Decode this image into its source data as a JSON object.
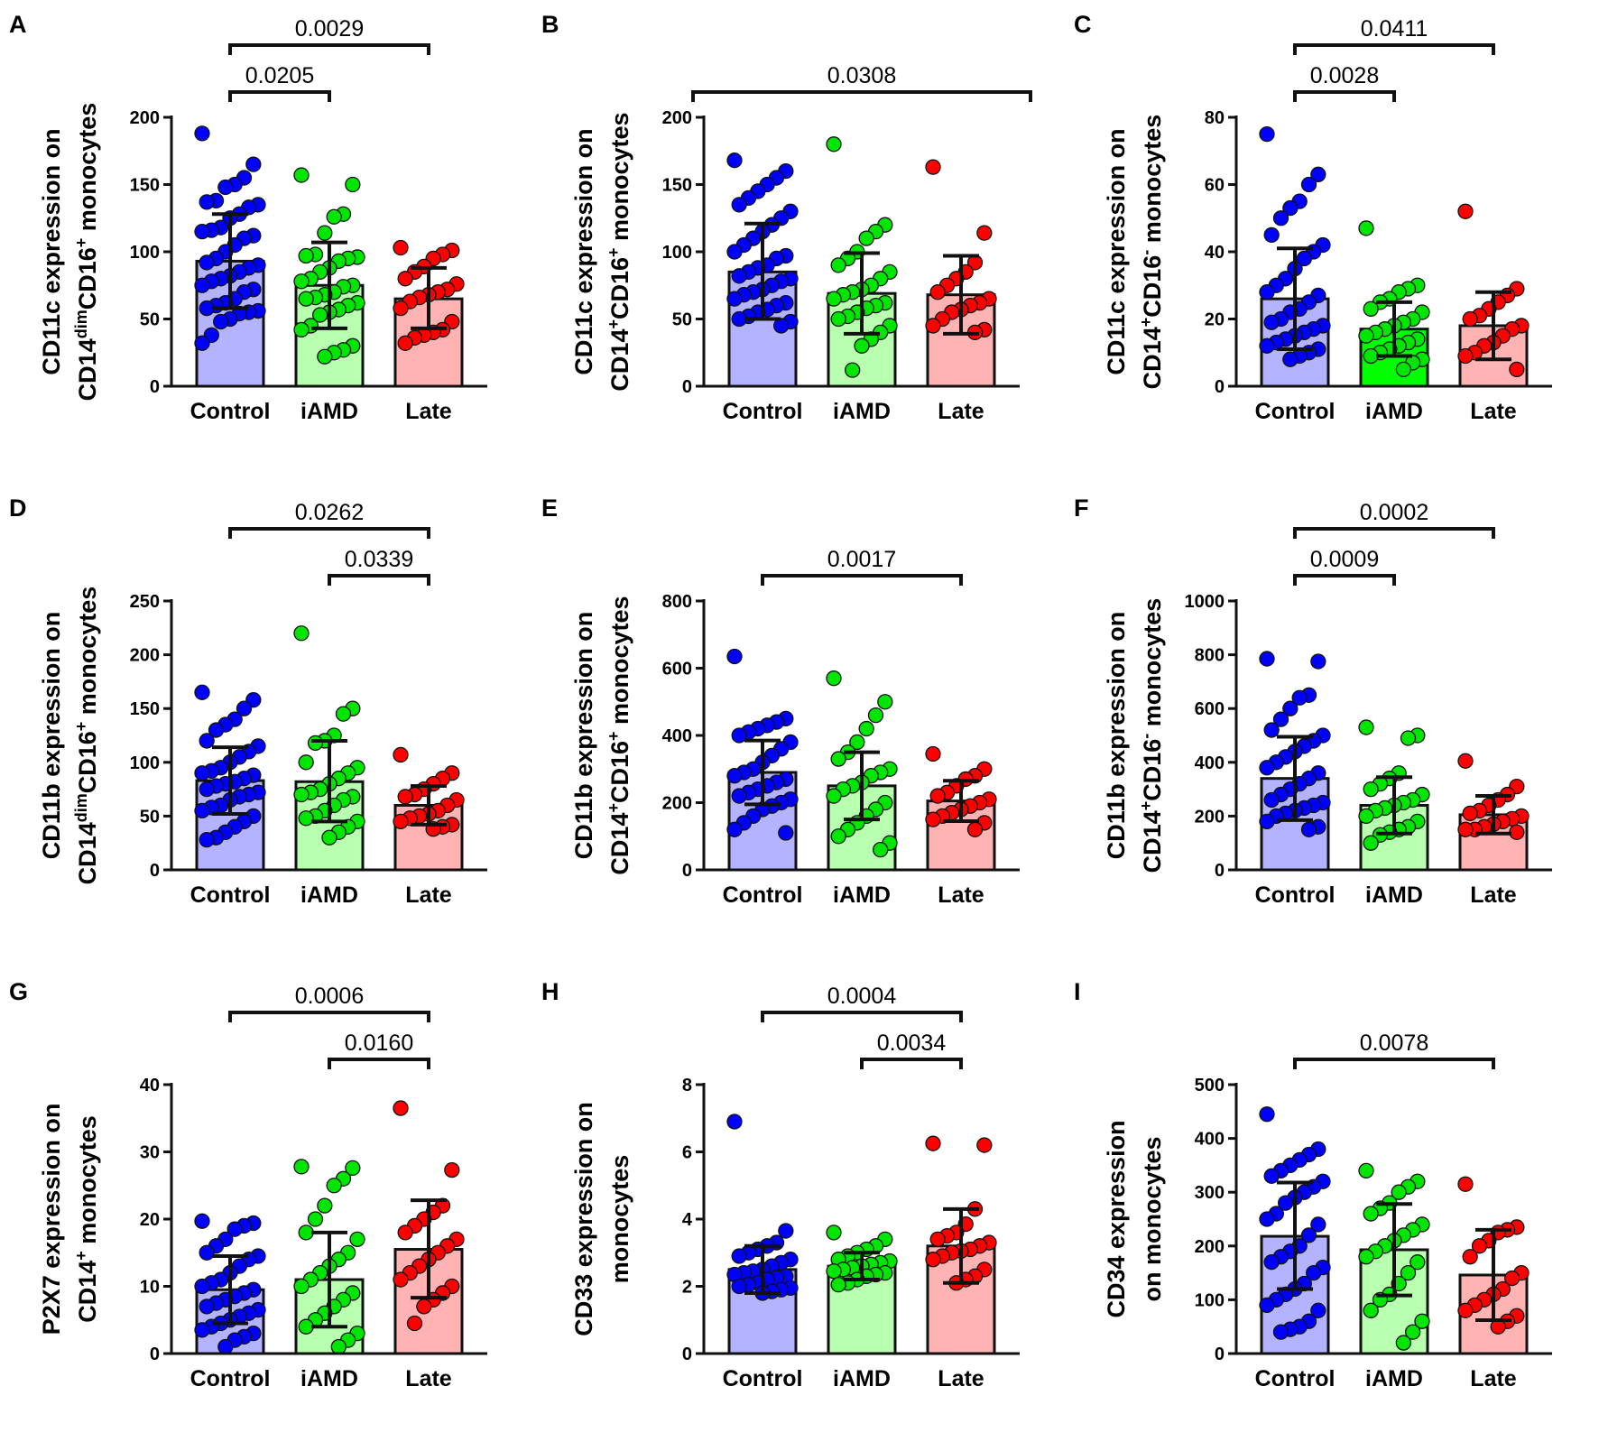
{
  "groups": [
    "Control",
    "iAMD",
    "Late"
  ],
  "colors": {
    "dots": [
      "#0000ff",
      "#00e600",
      "#ff0000"
    ],
    "bars": [
      "#b3b3ff",
      "#b8ffb0",
      "#ffb3b3"
    ],
    "bar_bright_iamd": "#00ff00"
  },
  "chart_data": [
    {
      "panel": "A",
      "type": "bar",
      "ylabel": [
        [
          {
            "t": "CD11c expression on"
          }
        ],
        [
          {
            "t": "CD14"
          },
          {
            "t": "dim",
            "sup": true
          },
          {
            "t": "CD16"
          },
          {
            "t": "+",
            "sup": true
          },
          {
            "t": " monocytes"
          }
        ]
      ],
      "ylim": [
        0,
        200
      ],
      "yticks": [
        0,
        50,
        100,
        150,
        200
      ],
      "means": [
        93,
        75,
        65
      ],
      "sd_low": [
        58,
        43,
        43
      ],
      "sd_high": [
        128,
        107,
        88
      ],
      "points": [
        [
          188,
          165,
          155,
          150,
          148,
          138,
          137,
          135,
          133,
          128,
          125,
          118,
          116,
          115,
          112,
          110,
          105,
          100,
          95,
          92,
          90,
          88,
          85,
          82,
          80,
          78,
          75,
          72,
          70,
          65,
          62,
          60,
          58,
          56,
          55,
          54,
          50,
          48,
          38,
          32
        ],
        [
          157,
          150,
          128,
          126,
          114,
          98,
          97,
          96,
          95,
          93,
          88,
          85,
          80,
          78,
          75,
          74,
          70,
          68,
          66,
          65,
          62,
          60,
          57,
          55,
          53,
          45,
          42,
          30,
          27,
          25,
          22
        ],
        [
          103,
          101,
          98,
          95,
          89,
          85,
          80,
          76,
          72,
          70,
          68,
          66,
          63,
          58,
          48,
          42,
          40,
          38,
          36,
          32
        ]
      ],
      "comparisons": [
        {
          "from": 0,
          "to": 1,
          "p": "0.0205"
        },
        {
          "from": 0,
          "to": 2,
          "p": "0.0029"
        }
      ]
    },
    {
      "panel": "B",
      "type": "bar",
      "ylabel": [
        [
          {
            "t": "CD11c expression on"
          }
        ],
        [
          {
            "t": "CD14"
          },
          {
            "t": "+",
            "sup": true
          },
          {
            "t": "CD16"
          },
          {
            "t": "+",
            "sup": true
          },
          {
            "t": " monocytes"
          }
        ]
      ],
      "ylim": [
        0,
        200
      ],
      "yticks": [
        0,
        50,
        100,
        150,
        200
      ],
      "means": [
        85,
        69,
        68
      ],
      "sd_low": [
        50,
        39,
        39
      ],
      "sd_high": [
        121,
        99,
        97
      ],
      "points": [
        [
          168,
          160,
          155,
          150,
          145,
          140,
          135,
          130,
          125,
          120,
          115,
          110,
          105,
          100,
          97,
          95,
          90,
          88,
          85,
          82,
          80,
          78,
          75,
          72,
          70,
          68,
          65,
          62,
          60,
          57,
          55,
          52,
          50,
          48,
          45
        ],
        [
          180,
          120,
          115,
          110,
          100,
          95,
          90,
          85,
          80,
          75,
          72,
          70,
          68,
          65,
          62,
          60,
          58,
          55,
          52,
          50,
          45,
          40,
          35,
          30,
          12
        ],
        [
          163,
          114,
          92,
          85,
          80,
          75,
          70,
          65,
          62,
          60,
          57,
          55,
          50,
          45,
          42,
          40
        ]
      ],
      "comparisons": [
        {
          "from": -0.7,
          "to": 2.7,
          "p": "0.0308"
        }
      ]
    },
    {
      "panel": "C",
      "type": "bar",
      "ylabel": [
        [
          {
            "t": "CD11c expression on"
          }
        ],
        [
          {
            "t": "CD14"
          },
          {
            "t": "+",
            "sup": true
          },
          {
            "t": "CD16"
          },
          {
            "t": "-",
            "sup": true
          },
          {
            "t": " monocytes"
          }
        ]
      ],
      "ylim": [
        0,
        80
      ],
      "yticks": [
        0,
        20,
        40,
        60,
        80
      ],
      "bright_iamd": true,
      "means": [
        26,
        17,
        18
      ],
      "sd_low": [
        11,
        9,
        8
      ],
      "sd_high": [
        41,
        25,
        28
      ],
      "points": [
        [
          75,
          63,
          60,
          55,
          53,
          50,
          45,
          42,
          40,
          38,
          35,
          32,
          30,
          28,
          27,
          25,
          23,
          22,
          20,
          19,
          18,
          17,
          16,
          15,
          14,
          13,
          12,
          11,
          10,
          9,
          8
        ],
        [
          47,
          30,
          29,
          28,
          26,
          25,
          23,
          22,
          20,
          19,
          18,
          17,
          16,
          15,
          14,
          13,
          12,
          11,
          10,
          9,
          8,
          7,
          5
        ],
        [
          52,
          29,
          27,
          25,
          23,
          21,
          20,
          18,
          17,
          15,
          13,
          12,
          10,
          9,
          5
        ]
      ],
      "comparisons": [
        {
          "from": 0,
          "to": 1,
          "p": "0.0028"
        },
        {
          "from": 0,
          "to": 2,
          "p": "0.0411"
        }
      ]
    },
    {
      "panel": "D",
      "type": "bar",
      "ylabel": [
        [
          {
            "t": "CD11b expression on"
          }
        ],
        [
          {
            "t": "CD14"
          },
          {
            "t": "dim",
            "sup": true
          },
          {
            "t": "CD16"
          },
          {
            "t": "+",
            "sup": true
          },
          {
            "t": " monocytes"
          }
        ]
      ],
      "ylim": [
        0,
        250
      ],
      "yticks": [
        0,
        50,
        100,
        150,
        200,
        250
      ],
      "means": [
        83,
        82,
        60
      ],
      "sd_low": [
        52,
        45,
        42
      ],
      "sd_high": [
        114,
        120,
        78
      ],
      "points": [
        [
          165,
          158,
          150,
          140,
          135,
          130,
          120,
          115,
          110,
          105,
          100,
          95,
          92,
          90,
          88,
          85,
          82,
          80,
          78,
          75,
          72,
          70,
          68,
          65,
          60,
          58,
          55,
          50,
          45,
          40,
          35,
          30,
          28
        ],
        [
          220,
          150,
          145,
          125,
          120,
          118,
          100,
          95,
          90,
          85,
          80,
          75,
          72,
          70,
          68,
          65,
          60,
          55,
          50,
          48,
          45,
          40,
          35,
          30
        ],
        [
          107,
          90,
          85,
          80,
          75,
          70,
          68,
          65,
          60,
          55,
          52,
          50,
          48,
          45,
          42,
          40,
          38
        ]
      ],
      "comparisons": [
        {
          "from": 1,
          "to": 2,
          "p": "0.0339"
        },
        {
          "from": 0,
          "to": 2,
          "p": "0.0262"
        }
      ]
    },
    {
      "panel": "E",
      "type": "bar",
      "ylabel": [
        [
          {
            "t": "CD11b expression on"
          }
        ],
        [
          {
            "t": "CD14"
          },
          {
            "t": "+",
            "sup": true
          },
          {
            "t": "CD16"
          },
          {
            "t": "+",
            "sup": true
          },
          {
            "t": " monocytes"
          }
        ]
      ],
      "ylim": [
        0,
        800
      ],
      "yticks": [
        0,
        200,
        400,
        600,
        800
      ],
      "means": [
        290,
        250,
        205
      ],
      "sd_low": [
        195,
        150,
        145
      ],
      "sd_high": [
        385,
        350,
        265
      ],
      "points": [
        [
          635,
          450,
          440,
          430,
          420,
          410,
          400,
          380,
          360,
          340,
          320,
          300,
          290,
          280,
          270,
          260,
          250,
          240,
          230,
          220,
          210,
          200,
          190,
          180,
          160,
          140,
          120,
          110
        ],
        [
          570,
          500,
          460,
          420,
          380,
          350,
          330,
          300,
          290,
          280,
          260,
          250,
          240,
          220,
          200,
          180,
          160,
          140,
          120,
          100,
          80,
          60
        ],
        [
          345,
          300,
          280,
          270,
          250,
          230,
          220,
          210,
          200,
          190,
          180,
          170,
          160,
          150,
          140,
          120
        ]
      ],
      "comparisons": [
        {
          "from": 0,
          "to": 2,
          "p": "0.0017"
        }
      ]
    },
    {
      "panel": "F",
      "type": "bar",
      "ylabel": [
        [
          {
            "t": "CD11b expression on"
          }
        ],
        [
          {
            "t": "CD14"
          },
          {
            "t": "+",
            "sup": true
          },
          {
            "t": "CD16"
          },
          {
            "t": "-",
            "sup": true
          },
          {
            "t": " monocytes"
          }
        ]
      ],
      "ylim": [
        0,
        1000
      ],
      "yticks": [
        0,
        200,
        400,
        600,
        800,
        1000
      ],
      "means": [
        340,
        240,
        205
      ],
      "sd_low": [
        185,
        135,
        135
      ],
      "sd_high": [
        495,
        345,
        275
      ],
      "points": [
        [
          785,
          775,
          650,
          640,
          600,
          560,
          520,
          500,
          480,
          460,
          440,
          420,
          400,
          380,
          360,
          340,
          320,
          300,
          280,
          260,
          250,
          240,
          230,
          220,
          210,
          200,
          180,
          160,
          150
        ],
        [
          530,
          500,
          490,
          360,
          340,
          320,
          300,
          280,
          260,
          250,
          240,
          230,
          220,
          200,
          180,
          160,
          150,
          140,
          130,
          100
        ],
        [
          405,
          310,
          280,
          260,
          240,
          220,
          210,
          200,
          190,
          180,
          170,
          160,
          150,
          150,
          140
        ]
      ],
      "comparisons": [
        {
          "from": 0,
          "to": 1,
          "p": "0.0009"
        },
        {
          "from": 0,
          "to": 2,
          "p": "0.0002"
        }
      ]
    },
    {
      "panel": "G",
      "type": "bar",
      "ylabel": [
        [
          {
            "t": "P2X7 expression on"
          }
        ],
        [
          {
            "t": "CD14"
          },
          {
            "t": "+",
            "sup": true
          },
          {
            "t": " monocytes"
          }
        ]
      ],
      "ylim": [
        0,
        40
      ],
      "yticks": [
        0,
        10,
        20,
        30,
        40
      ],
      "means": [
        9.5,
        11,
        15.5
      ],
      "sd_low": [
        4.5,
        4,
        8.3
      ],
      "sd_high": [
        14.5,
        18,
        22.8
      ],
      "points": [
        [
          19.7,
          19.4,
          19,
          18.5,
          17,
          16,
          15,
          14.5,
          14,
          13,
          12,
          11,
          10.5,
          10,
          9.5,
          9,
          8.5,
          8,
          7.5,
          7,
          6.5,
          6,
          5.5,
          5,
          4.5,
          4,
          3.5,
          3,
          2.5,
          2,
          1
        ],
        [
          27.8,
          27.6,
          26,
          25,
          22,
          20,
          18,
          17,
          15,
          14,
          13,
          12,
          11,
          10,
          9,
          8,
          7,
          6,
          5,
          4,
          3,
          2,
          1
        ],
        [
          36.5,
          27.3,
          22,
          21,
          20,
          19,
          18,
          17,
          16,
          15,
          14,
          13,
          12,
          11,
          10,
          9,
          8,
          7,
          4.5
        ]
      ],
      "comparisons": [
        {
          "from": 1,
          "to": 2,
          "p": "0.0160"
        },
        {
          "from": 0,
          "to": 2,
          "p": "0.0006"
        }
      ]
    },
    {
      "panel": "H",
      "type": "bar",
      "ylabel": [
        [
          {
            "t": "CD33 expression on"
          }
        ],
        [
          {
            "t": "monocytes"
          }
        ]
      ],
      "ylim": [
        0,
        8
      ],
      "yticks": [
        0,
        2,
        4,
        6,
        8
      ],
      "means": [
        2.5,
        2.6,
        3.2
      ],
      "sd_low": [
        1.8,
        2.2,
        2.1
      ],
      "sd_high": [
        3.2,
        3.0,
        4.3
      ],
      "points": [
        [
          6.9,
          3.65,
          3.3,
          3.2,
          3.1,
          3,
          2.9,
          2.8,
          2.7,
          2.6,
          2.5,
          2.45,
          2.4,
          2.35,
          2.3,
          2.25,
          2.2,
          2.1,
          2.05,
          2,
          1.95,
          1.9,
          1.85,
          1.8
        ],
        [
          3.6,
          3.4,
          3.2,
          3.1,
          3,
          2.9,
          2.8,
          2.75,
          2.7,
          2.65,
          2.6,
          2.55,
          2.5,
          2.45,
          2.4,
          2.35,
          2.3,
          2.2,
          2.1,
          2.05
        ],
        [
          6.25,
          6.2,
          4.3,
          3.85,
          3.6,
          3.5,
          3.4,
          3.3,
          3.2,
          3.1,
          3.05,
          3,
          2.9,
          2.8,
          2.5,
          2.3,
          2.2,
          2.1
        ]
      ],
      "comparisons": [
        {
          "from": 1,
          "to": 2,
          "p": "0.0034"
        },
        {
          "from": 0,
          "to": 2,
          "p": "0.0004"
        }
      ]
    },
    {
      "panel": "I",
      "type": "bar",
      "ylabel": [
        [
          {
            "t": "CD34 expression"
          }
        ],
        [
          {
            "t": "on monocytes"
          }
        ]
      ],
      "ylim": [
        0,
        500
      ],
      "yticks": [
        0,
        100,
        200,
        300,
        400,
        500
      ],
      "means": [
        218,
        193,
        146
      ],
      "sd_low": [
        120,
        108,
        62
      ],
      "sd_high": [
        318,
        278,
        230
      ],
      "points": [
        [
          445,
          380,
          370,
          360,
          350,
          340,
          330,
          320,
          310,
          300,
          290,
          280,
          260,
          250,
          240,
          220,
          200,
          190,
          180,
          170,
          160,
          150,
          130,
          120,
          110,
          100,
          90,
          80,
          60,
          50,
          45,
          40
        ],
        [
          340,
          320,
          310,
          300,
          280,
          270,
          260,
          240,
          230,
          220,
          210,
          200,
          190,
          180,
          170,
          150,
          130,
          110,
          100,
          80,
          60,
          40,
          20
        ],
        [
          315,
          235,
          230,
          225,
          210,
          200,
          180,
          150,
          140,
          120,
          110,
          100,
          90,
          80,
          70,
          60,
          50
        ]
      ],
      "comparisons": [
        {
          "from": 0,
          "to": 2,
          "p": "0.0078"
        }
      ]
    }
  ]
}
